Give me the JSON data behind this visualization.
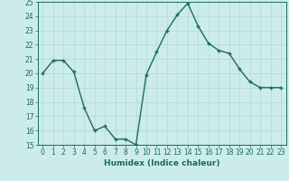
{
  "x": [
    0,
    1,
    2,
    3,
    4,
    5,
    6,
    7,
    8,
    9,
    10,
    11,
    12,
    13,
    14,
    15,
    16,
    17,
    18,
    19,
    20,
    21,
    22,
    23
  ],
  "y": [
    20,
    20.9,
    20.9,
    20.1,
    17.6,
    16.0,
    16.3,
    15.4,
    15.4,
    15.0,
    19.9,
    21.5,
    23.0,
    24.1,
    24.9,
    23.3,
    22.1,
    21.6,
    21.4,
    20.3,
    19.4,
    19.0,
    19.0,
    19.0
  ],
  "line_color": "#1a6b5a",
  "marker": "+",
  "markersize": 3.5,
  "linewidth": 1.0,
  "bg_color": "#ccecea",
  "grid_color": "#b0d8d5",
  "xlabel": "Humidex (Indice chaleur)",
  "xlim": [
    -0.5,
    23.5
  ],
  "ylim": [
    15,
    25
  ],
  "yticks": [
    15,
    16,
    17,
    18,
    19,
    20,
    21,
    22,
    23,
    24,
    25
  ],
  "xticks": [
    0,
    1,
    2,
    3,
    4,
    5,
    6,
    7,
    8,
    9,
    10,
    11,
    12,
    13,
    14,
    15,
    16,
    17,
    18,
    19,
    20,
    21,
    22,
    23
  ],
  "tick_color": "#1a6b5a",
  "label_fontsize": 6.5,
  "tick_fontsize": 5.5
}
